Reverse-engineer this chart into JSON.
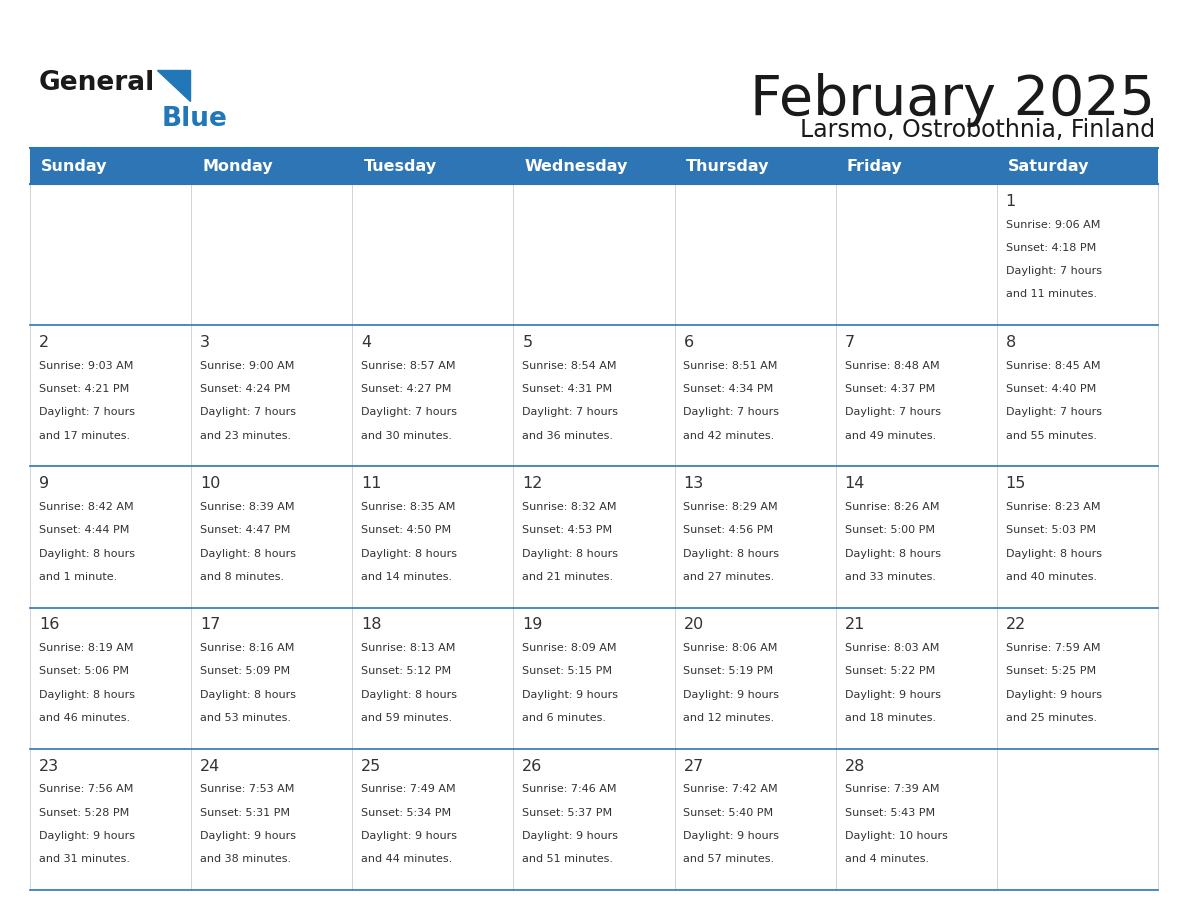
{
  "title": "February 2025",
  "subtitle": "Larsmo, Ostrobothnia, Finland",
  "header_bg": "#2E75B6",
  "header_text": "#FFFFFF",
  "days_of_week": [
    "Sunday",
    "Monday",
    "Tuesday",
    "Wednesday",
    "Thursday",
    "Friday",
    "Saturday"
  ],
  "border_color": "#2E75B6",
  "text_color": "#333333",
  "logo_black": "#1a1a1a",
  "logo_blue": "#2177B8",
  "calendar": [
    [
      null,
      null,
      null,
      null,
      null,
      null,
      {
        "day": "1",
        "sunrise": "9:06 AM",
        "sunset": "4:18 PM",
        "daylight_h": "7 hours",
        "daylight_m": "and 11 minutes."
      }
    ],
    [
      {
        "day": "2",
        "sunrise": "9:03 AM",
        "sunset": "4:21 PM",
        "daylight_h": "7 hours",
        "daylight_m": "and 17 minutes."
      },
      {
        "day": "3",
        "sunrise": "9:00 AM",
        "sunset": "4:24 PM",
        "daylight_h": "7 hours",
        "daylight_m": "and 23 minutes."
      },
      {
        "day": "4",
        "sunrise": "8:57 AM",
        "sunset": "4:27 PM",
        "daylight_h": "7 hours",
        "daylight_m": "and 30 minutes."
      },
      {
        "day": "5",
        "sunrise": "8:54 AM",
        "sunset": "4:31 PM",
        "daylight_h": "7 hours",
        "daylight_m": "and 36 minutes."
      },
      {
        "day": "6",
        "sunrise": "8:51 AM",
        "sunset": "4:34 PM",
        "daylight_h": "7 hours",
        "daylight_m": "and 42 minutes."
      },
      {
        "day": "7",
        "sunrise": "8:48 AM",
        "sunset": "4:37 PM",
        "daylight_h": "7 hours",
        "daylight_m": "and 49 minutes."
      },
      {
        "day": "8",
        "sunrise": "8:45 AM",
        "sunset": "4:40 PM",
        "daylight_h": "7 hours",
        "daylight_m": "and 55 minutes."
      }
    ],
    [
      {
        "day": "9",
        "sunrise": "8:42 AM",
        "sunset": "4:44 PM",
        "daylight_h": "8 hours",
        "daylight_m": "and 1 minute."
      },
      {
        "day": "10",
        "sunrise": "8:39 AM",
        "sunset": "4:47 PM",
        "daylight_h": "8 hours",
        "daylight_m": "and 8 minutes."
      },
      {
        "day": "11",
        "sunrise": "8:35 AM",
        "sunset": "4:50 PM",
        "daylight_h": "8 hours",
        "daylight_m": "and 14 minutes."
      },
      {
        "day": "12",
        "sunrise": "8:32 AM",
        "sunset": "4:53 PM",
        "daylight_h": "8 hours",
        "daylight_m": "and 21 minutes."
      },
      {
        "day": "13",
        "sunrise": "8:29 AM",
        "sunset": "4:56 PM",
        "daylight_h": "8 hours",
        "daylight_m": "and 27 minutes."
      },
      {
        "day": "14",
        "sunrise": "8:26 AM",
        "sunset": "5:00 PM",
        "daylight_h": "8 hours",
        "daylight_m": "and 33 minutes."
      },
      {
        "day": "15",
        "sunrise": "8:23 AM",
        "sunset": "5:03 PM",
        "daylight_h": "8 hours",
        "daylight_m": "and 40 minutes."
      }
    ],
    [
      {
        "day": "16",
        "sunrise": "8:19 AM",
        "sunset": "5:06 PM",
        "daylight_h": "8 hours",
        "daylight_m": "and 46 minutes."
      },
      {
        "day": "17",
        "sunrise": "8:16 AM",
        "sunset": "5:09 PM",
        "daylight_h": "8 hours",
        "daylight_m": "and 53 minutes."
      },
      {
        "day": "18",
        "sunrise": "8:13 AM",
        "sunset": "5:12 PM",
        "daylight_h": "8 hours",
        "daylight_m": "and 59 minutes."
      },
      {
        "day": "19",
        "sunrise": "8:09 AM",
        "sunset": "5:15 PM",
        "daylight_h": "9 hours",
        "daylight_m": "and 6 minutes."
      },
      {
        "day": "20",
        "sunrise": "8:06 AM",
        "sunset": "5:19 PM",
        "daylight_h": "9 hours",
        "daylight_m": "and 12 minutes."
      },
      {
        "day": "21",
        "sunrise": "8:03 AM",
        "sunset": "5:22 PM",
        "daylight_h": "9 hours",
        "daylight_m": "and 18 minutes."
      },
      {
        "day": "22",
        "sunrise": "7:59 AM",
        "sunset": "5:25 PM",
        "daylight_h": "9 hours",
        "daylight_m": "and 25 minutes."
      }
    ],
    [
      {
        "day": "23",
        "sunrise": "7:56 AM",
        "sunset": "5:28 PM",
        "daylight_h": "9 hours",
        "daylight_m": "and 31 minutes."
      },
      {
        "day": "24",
        "sunrise": "7:53 AM",
        "sunset": "5:31 PM",
        "daylight_h": "9 hours",
        "daylight_m": "and 38 minutes."
      },
      {
        "day": "25",
        "sunrise": "7:49 AM",
        "sunset": "5:34 PM",
        "daylight_h": "9 hours",
        "daylight_m": "and 44 minutes."
      },
      {
        "day": "26",
        "sunrise": "7:46 AM",
        "sunset": "5:37 PM",
        "daylight_h": "9 hours",
        "daylight_m": "and 51 minutes."
      },
      {
        "day": "27",
        "sunrise": "7:42 AM",
        "sunset": "5:40 PM",
        "daylight_h": "9 hours",
        "daylight_m": "and 57 minutes."
      },
      {
        "day": "28",
        "sunrise": "7:39 AM",
        "sunset": "5:43 PM",
        "daylight_h": "10 hours",
        "daylight_m": "and 4 minutes."
      },
      null
    ]
  ]
}
